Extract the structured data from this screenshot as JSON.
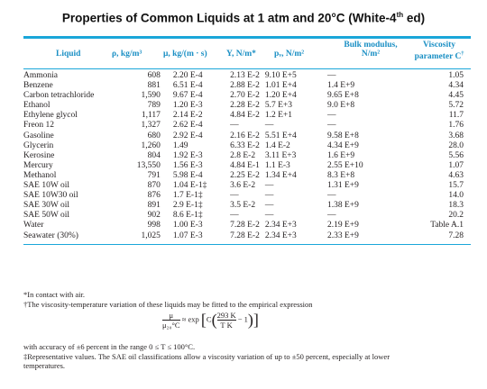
{
  "title": "Properties of Common Liquids at 1 atm and 20°C (White-4",
  "title_sup": "th",
  "title_end": " ed)",
  "headers": {
    "liquid": "Liquid",
    "rho": "ρ, kg/m³",
    "mu": "μ, kg/(m · s)",
    "Y": "Y, N/m*",
    "pv": "pᵥ, N/m²",
    "bulk_line1": "Bulk modulus,",
    "bulk_line2": "N/m²",
    "visc_line1": "Viscosity",
    "visc_line2": "parameter C",
    "visc_mark": "†"
  },
  "rows": [
    {
      "liquid": "Ammonia",
      "rho": "608",
      "mu": "2.20 E-4",
      "Y": "2.13 E-2",
      "pv": "9.10 E+5",
      "bulk": "—",
      "c": "1.05"
    },
    {
      "liquid": "Benzene",
      "rho": "881",
      "mu": "6.51 E-4",
      "Y": "2.88 E-2",
      "pv": "1.01 E+4",
      "bulk": "1.4  E+9",
      "c": "4.34"
    },
    {
      "liquid": "Carbon tetrachloride",
      "rho": "1,590",
      "mu": "9.67 E-4",
      "Y": "2.70 E-2",
      "pv": "1.20 E+4",
      "bulk": "9.65 E+8",
      "c": "4.45"
    },
    {
      "liquid": "Ethanol",
      "rho": "789",
      "mu": "1.20 E-3",
      "Y": "2.28 E-2",
      "pv": "5.7  E+3",
      "bulk": "9.0  E+8",
      "c": "5.72"
    },
    {
      "liquid": "Ethylene glycol",
      "rho": "1,117",
      "mu": "2.14 E-2",
      "Y": "4.84 E-2",
      "pv": "1.2  E+1",
      "bulk": "—",
      "c": "11.7"
    },
    {
      "liquid": "Freon 12",
      "rho": "1,327",
      "mu": "2.62 E-4",
      "Y": "—",
      "pv": "—",
      "bulk": "—",
      "c": "1.76"
    },
    {
      "liquid": "Gasoline",
      "rho": "680",
      "mu": "2.92 E-4",
      "Y": "2.16 E-2",
      "pv": "5.51 E+4",
      "bulk": "9.58 E+8",
      "c": "3.68"
    },
    {
      "liquid": "Glycerin",
      "rho": "1,260",
      "mu": "1.49",
      "Y": "6.33 E-2",
      "pv": "1.4  E-2",
      "bulk": "4.34 E+9",
      "c": "28.0"
    },
    {
      "liquid": "Kerosine",
      "rho": "804",
      "mu": "1.92 E-3",
      "Y": "2.8  E-2",
      "pv": "3.11 E+3",
      "bulk": "1.6  E+9",
      "c": "5.56"
    },
    {
      "liquid": "Mercury",
      "rho": "13,550",
      "mu": "1.56 E-3",
      "Y": "4.84 E-1",
      "pv": "1.1  E-3",
      "bulk": "2.55 E+10",
      "c": "1.07"
    },
    {
      "liquid": "Methanol",
      "rho": "791",
      "mu": "5.98 E-4",
      "Y": "2.25 E-2",
      "pv": "1.34 E+4",
      "bulk": "8.3  E+8",
      "c": "4.63"
    },
    {
      "liquid": "SAE 10W oil",
      "rho": "870",
      "mu": "1.04 E-1‡",
      "Y": "3.6  E-2",
      "pv": "—",
      "bulk": "1.31 E+9",
      "c": "15.7"
    },
    {
      "liquid": "SAE 10W30 oil",
      "rho": "876",
      "mu": "1.7 E-1‡",
      "Y": "—",
      "pv": "—",
      "bulk": "—",
      "c": "14.0"
    },
    {
      "liquid": "SAE 30W oil",
      "rho": "891",
      "mu": "2.9 E-1‡",
      "Y": "3.5  E-2",
      "pv": "—",
      "bulk": "1.38 E+9",
      "c": "18.3"
    },
    {
      "liquid": "SAE 50W oil",
      "rho": "902",
      "mu": "8.6 E-1‡",
      "Y": "—",
      "pv": "—",
      "bulk": "—",
      "c": "20.2"
    },
    {
      "liquid": "Water",
      "rho": "998",
      "mu": "1.00 E-3",
      "Y": "7.28 E-2",
      "pv": "2.34 E+3",
      "bulk": "2.19 E+9",
      "c": "Table A.1"
    },
    {
      "liquid": "Seawater (30%)",
      "rho": "1,025",
      "mu": "1.07 E-3",
      "Y": "7.28 E-2",
      "pv": "2.34 E+3",
      "bulk": "2.33 E+9",
      "c": "7.28"
    }
  ],
  "notes": {
    "n1": "*In contact with air.",
    "n2": "†The viscosity-temperature variation of these liquids may be fitted to the empirical expression",
    "formula_lhs_num": "μ",
    "formula_lhs_den": "μ₂₀°C",
    "formula_approx": "≈ exp",
    "formula_c": "C",
    "formula_num": "293 K",
    "formula_den": "T K",
    "formula_minus": "− 1",
    "n3": "with accuracy of ±6 percent in the range 0 ≤ T ≤ 100°C.",
    "n4": "‡Representative values. The SAE oil classifications allow a viscosity variation of up to ±50 percent, especially at lower",
    "n5": "temperatures."
  },
  "colors": {
    "accent": "#1aa6d9",
    "header_text": "#1a8fc4"
  }
}
